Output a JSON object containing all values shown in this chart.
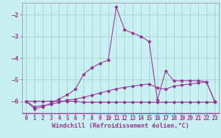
{
  "xlabel": "Windchill (Refroidissement éolien,°C)",
  "bg_color": "#c8f0f0",
  "line_color": "#993399",
  "grid_color": "#99cccc",
  "x_min": -0.5,
  "x_max": 23.5,
  "y_min": -6.55,
  "y_max": -1.45,
  "yticks": [
    -6,
    -5,
    -4,
    -3,
    -2
  ],
  "xticks": [
    0,
    1,
    2,
    3,
    4,
    5,
    6,
    7,
    8,
    9,
    10,
    11,
    12,
    13,
    14,
    15,
    16,
    17,
    18,
    19,
    20,
    21,
    22,
    23
  ],
  "series1_x": [
    0,
    1,
    2,
    3,
    4,
    5,
    6,
    7,
    8,
    9,
    10,
    11,
    12,
    13,
    14,
    15,
    16,
    17,
    18,
    19,
    20,
    21,
    22,
    23
  ],
  "series1_y": [
    -6.0,
    -6.0,
    -6.0,
    -6.0,
    -6.0,
    -6.0,
    -6.0,
    -6.05,
    -6.05,
    -6.05,
    -6.05,
    -6.05,
    -6.05,
    -6.05,
    -6.05,
    -6.05,
    -6.05,
    -6.05,
    -6.05,
    -6.05,
    -6.05,
    -6.05,
    -6.05,
    -6.05
  ],
  "series2_x": [
    0,
    1,
    2,
    3,
    4,
    5,
    6,
    7,
    8,
    9,
    10,
    11,
    12,
    13,
    14,
    15,
    16,
    17,
    18,
    19,
    20,
    21,
    22,
    23
  ],
  "series2_y": [
    -6.0,
    -6.25,
    -6.2,
    -6.15,
    -6.05,
    -5.95,
    -5.9,
    -5.82,
    -5.72,
    -5.62,
    -5.52,
    -5.42,
    -5.36,
    -5.3,
    -5.25,
    -5.2,
    -5.38,
    -5.45,
    -5.3,
    -5.25,
    -5.2,
    -5.15,
    -5.12,
    -6.0
  ],
  "series3_x": [
    0,
    1,
    2,
    3,
    4,
    5,
    6,
    7,
    8,
    9,
    10,
    11,
    12,
    13,
    14,
    15,
    16,
    17,
    18,
    19,
    20,
    21,
    22,
    23
  ],
  "series3_y": [
    -6.0,
    -6.35,
    -6.25,
    -6.1,
    -5.9,
    -5.7,
    -5.45,
    -4.75,
    -4.45,
    -4.25,
    -4.1,
    -1.65,
    -2.7,
    -2.85,
    -3.0,
    -3.25,
    -5.95,
    -4.6,
    -5.05,
    -5.05,
    -5.05,
    -5.05,
    -5.1,
    -6.0
  ],
  "marker": "*",
  "markersize": 3,
  "linewidth": 0.8,
  "xlabel_fontsize": 6.5,
  "tick_fontsize": 5.5,
  "ytick_fontsize": 6.5
}
